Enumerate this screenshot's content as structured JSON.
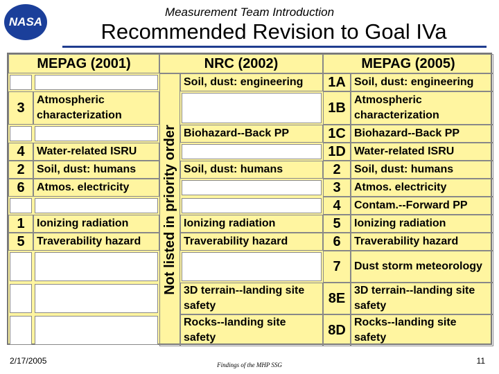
{
  "header": {
    "logo": "NASA",
    "subtitle": "Measurement Team Introduction",
    "title": "Recommended Revision to Goal IVa"
  },
  "table": {
    "columns": [
      "MEPAG (2001)",
      "NRC (2002)",
      "MEPAG (2005)"
    ],
    "side_label": "Not listed in priority order",
    "rows": [
      [
        null,
        null,
        "Soil, dust:  engineering",
        "1A",
        "Soil, dust:  engineering"
      ],
      [
        "3",
        "Atmospheric characterization",
        null,
        "1B",
        "Atmospheric characterization"
      ],
      [
        null,
        null,
        "Biohazard--Back PP",
        "1C",
        "Biohazard--Back PP"
      ],
      [
        "4",
        "Water-related ISRU",
        null,
        "1D",
        "Water-related ISRU"
      ],
      [
        "2",
        "Soil, dust: humans",
        "Soil, dust: humans",
        "2",
        "Soil, dust: humans"
      ],
      [
        "6",
        "Atmos. electricity",
        null,
        "3",
        "Atmos. electricity"
      ],
      [
        null,
        null,
        null,
        "4",
        "Contam.--Forward PP"
      ],
      [
        "1",
        "Ionizing radiation",
        "Ionizing radiation",
        "5",
        "Ionizing radiation"
      ],
      [
        "5",
        "Traverability hazard",
        "Traverability hazard",
        "6",
        "Traverability hazard"
      ],
      [
        null,
        null,
        null,
        "7",
        "Dust storm meteorology"
      ],
      [
        null,
        null,
        "3D terrain--landing site safety",
        "8E",
        "3D terrain--landing site safety"
      ],
      [
        null,
        null,
        "Rocks--landing site safety",
        "8D",
        "Rocks--landing site safety"
      ]
    ]
  },
  "footer": {
    "date": "2/17/2005",
    "note": "Findings of the MHP SSG",
    "page": "11"
  }
}
